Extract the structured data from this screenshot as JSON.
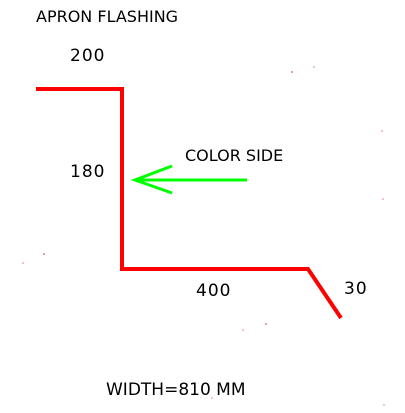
{
  "title": "APRON FLASHING",
  "dimensions": {
    "top": "200",
    "vertical": "180",
    "bottom": "400",
    "hem": "30"
  },
  "arrow_label": "COLOR SIDE",
  "total_width": "WIDTH=810  MM",
  "colors": {
    "profile": "#ff0000",
    "arrow": "#00ff00",
    "text": "#000000",
    "background": "#ffffff"
  }
}
